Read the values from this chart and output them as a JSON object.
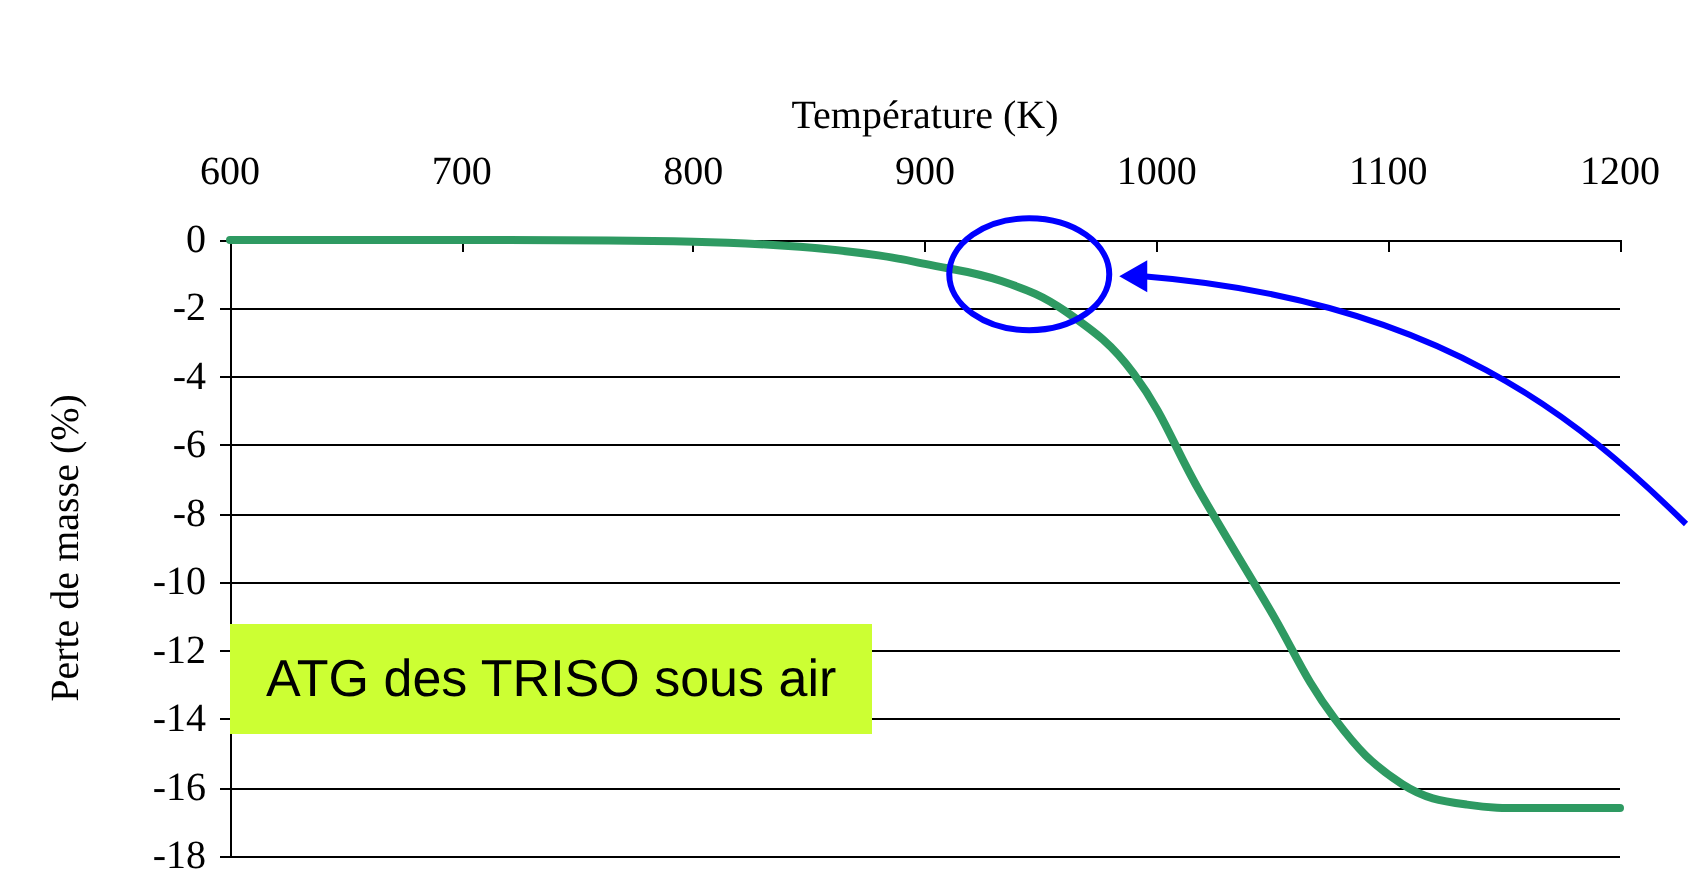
{
  "chart_data": {
    "type": "line",
    "xlabel": "Température (K)",
    "ylabel": "Perte de masse (%)",
    "annotations": [
      "ATG des TRISO sous air"
    ],
    "xlim": [
      600,
      1200
    ],
    "xticks": [
      600,
      700,
      800,
      900,
      1000,
      1100,
      1200
    ],
    "ylim": [
      -18,
      0
    ],
    "yticks": [
      -18,
      -16,
      -14,
      -12,
      -10,
      -8,
      -6,
      -4,
      -2,
      0
    ],
    "grid": "y",
    "marker": "none",
    "line_style": "solid",
    "series": [
      {
        "color": "#2e9a62",
        "x": [
          600,
          700,
          800,
          846,
          880,
          900,
          933,
          961,
          990,
          1019,
          1048,
          1077,
          1106,
          1134,
          1160,
          1200
        ],
        "values": [
          0,
          0,
          -0.05,
          -0.2,
          -0.45,
          -0.7,
          -1.2,
          -2.1,
          -3.9,
          -7.4,
          -10.7,
          -14,
          -15.9,
          -16.5,
          -16.6,
          -16.6
        ]
      }
    ]
  }
}
